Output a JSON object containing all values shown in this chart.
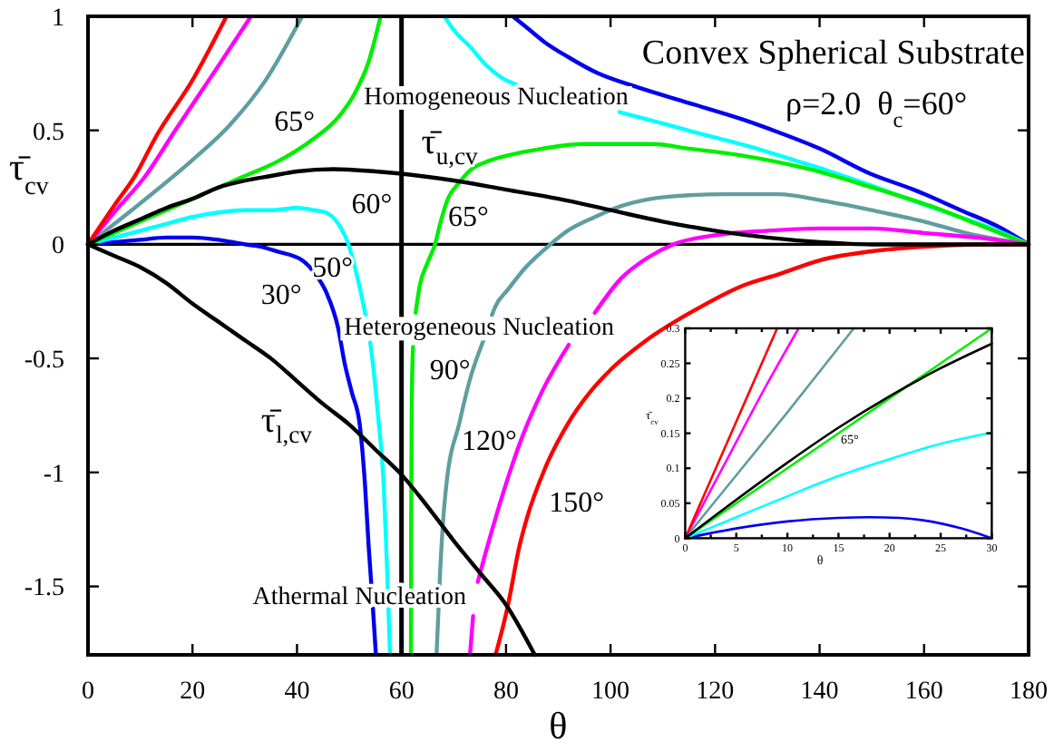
{
  "chart_data": [
    {
      "type": "line",
      "title": "Convex Spherical Substrate",
      "subtitle": "ρ=2.0  θ$_{c}$=60°",
      "xlabel": "θ",
      "ylabel": "τ̄$_{cv}$",
      "xlim": [
        0,
        180
      ],
      "ylim": [
        -1.8,
        1
      ],
      "xticks": [
        0,
        20,
        40,
        60,
        80,
        100,
        120,
        140,
        160,
        180
      ],
      "yticks": [
        -1.5,
        -1,
        -0.5,
        0,
        0.5,
        1
      ],
      "ref_lines": [
        {
          "axis": "x",
          "value": 60,
          "label": "60°",
          "color": "#000000"
        },
        {
          "axis": "y",
          "value": 0,
          "color": "#000000"
        }
      ],
      "annotations": [
        "Homogeneous Nucleation",
        "Heterogeneous Nucleation",
        "Athermal Nucleation"
      ],
      "series": [
        {
          "name": "30°",
          "color": "#0000ee",
          "x": [
            0,
            5,
            10,
            15,
            20,
            25,
            30,
            33,
            36,
            41,
            43.5,
            45.6,
            47.9,
            49.1,
            50.5,
            52,
            53,
            53.7,
            54.4,
            55.1,
            60,
            81.3,
            84,
            87.2,
            92,
            97.6,
            105,
            115,
            125,
            132.3,
            140,
            149.7,
            158,
            167,
            174,
            180
          ],
          "values": [
            0,
            0.01,
            0.02,
            0.03,
            0.03,
            0.02,
            0,
            -0.01,
            -0.03,
            -0.07,
            -0.13,
            -0.21,
            -0.37,
            -0.52,
            -0.65,
            -0.79,
            -1.05,
            -1.32,
            -1.55,
            -1.8,
            null,
            1,
            0.95,
            0.89,
            0.82,
            0.75,
            0.69,
            0.62,
            0.55,
            0.49,
            0.42,
            0.31,
            0.24,
            0.15,
            0.08,
            0
          ]
        },
        {
          "name": "50°",
          "color": "#00ffff",
          "x": [
            0,
            5,
            10,
            15,
            20,
            25,
            30,
            35,
            40,
            43.3,
            45.5,
            47.9,
            49.7,
            51.4,
            52.3,
            53.1,
            53.5,
            54,
            54.5,
            55.5,
            56.6,
            57.2,
            57.8,
            60,
            68.2,
            70,
            73.4,
            76,
            79.2,
            82,
            90,
            101.7,
            110,
            118,
            126.5,
            135,
            142,
            149.7,
            158,
            168.2,
            174,
            180
          ],
          "values": [
            0,
            0.03,
            0.06,
            0.09,
            0.12,
            0.14,
            0.15,
            0.15,
            0.16,
            0.15,
            0.14,
            0.09,
            0.01,
            -0.13,
            -0.22,
            -0.31,
            null,
            -0.43,
            -0.52,
            -0.75,
            -1.06,
            -1.4,
            -1.8,
            null,
            1,
            0.94,
            0.86,
            0.79,
            0.73,
            0.7,
            null,
            0.58,
            0.53,
            0.48,
            0.43,
            0.37,
            0.32,
            0.26,
            0.19,
            0.11,
            0.06,
            0
          ]
        },
        {
          "name": "65°",
          "color": "#00ee00",
          "x": [
            0,
            10,
            20,
            30,
            36,
            43,
            48,
            51,
            53.7,
            56,
            60,
            61.8,
            61.85,
            61.95,
            62.2,
            62.4,
            62.7,
            63.5,
            65,
            66.4,
            67.5,
            68.7,
            71,
            73.4,
            76,
            80.3,
            87,
            95,
            101,
            108,
            115,
            125,
            138,
            150,
            161,
            170,
            180
          ],
          "values": [
            0,
            0.1,
            0.2,
            0.3,
            0.36,
            0.46,
            0.56,
            0.66,
            0.8,
            1,
            null,
            -1.8,
            -1.2,
            -0.7,
            -0.45,
            null,
            -0.3,
            -0.18,
            -0.08,
            0,
            0.1,
            0.19,
            0.27,
            0.33,
            0.36,
            0.39,
            0.42,
            0.44,
            0.44,
            0.44,
            0.42,
            0.39,
            0.33,
            0.25,
            0.17,
            0.09,
            0
          ]
        },
        {
          "name": "90°",
          "color": "#5f9ea0",
          "x": [
            0,
            10,
            20,
            27,
            34,
            41,
            60,
            66.7,
            67.4,
            68,
            68.7,
            71,
            73,
            75.7,
            76.5,
            77.3,
            78,
            80.3,
            83.8,
            87,
            91.8,
            97,
            102.3,
            111.5,
            122,
            132,
            141,
            150,
            160,
            168,
            180
          ],
          "values": [
            0,
            0.18,
            0.37,
            0.52,
            0.72,
            1,
            null,
            -1.8,
            -1.43,
            -1.2,
            -1.03,
            -0.79,
            -0.6,
            -0.42,
            null,
            -0.31,
            -0.27,
            -0.2,
            -0.1,
            -0.03,
            0.06,
            0.12,
            0.17,
            0.21,
            0.22,
            0.22,
            0.19,
            0.15,
            0.1,
            0.05,
            0
          ]
        },
        {
          "name": "120°",
          "color": "#ff00ff",
          "x": [
            0,
            5,
            11,
            16.7,
            24,
            31.2,
            60,
            73.1,
            73.7,
            74.1,
            74.6,
            76,
            78,
            80,
            83,
            87,
            92,
            95,
            97,
            102,
            107,
            112,
            120,
            130,
            140,
            150,
            160,
            170,
            180
          ],
          "values": [
            0,
            0.14,
            0.3,
            0.5,
            0.75,
            1,
            null,
            -1.8,
            -1.63,
            null,
            -1.48,
            -1.36,
            -1.2,
            -1.05,
            -0.85,
            -0.64,
            -0.44,
            null,
            -0.3,
            -0.15,
            -0.06,
            0,
            0.04,
            0.06,
            0.07,
            0.07,
            0.05,
            0.03,
            0
          ]
        },
        {
          "name": "150°",
          "color": "#ff0000",
          "x": [
            0,
            5,
            9,
            13.2,
            20,
            26.5,
            60,
            78,
            80.3,
            82.6,
            84,
            87.5,
            92,
            96,
            100,
            106.9,
            116,
            125.4,
            132.3,
            140,
            150,
            160,
            170,
            180
          ],
          "values": [
            0,
            0.17,
            0.3,
            0.48,
            0.72,
            1,
            null,
            -1.8,
            -1.59,
            -1.32,
            -1.2,
            -0.98,
            -0.78,
            -0.65,
            -0.55,
            -0.42,
            -0.29,
            -0.18,
            -0.13,
            -0.07,
            -0.03,
            -0.01,
            0,
            0
          ]
        },
        {
          "name": "τ̄$_{u,cv}$",
          "color": "#000000",
          "x": [
            0,
            5,
            10,
            15,
            20,
            25,
            30,
            35,
            40,
            47,
            55,
            60,
            70,
            80,
            90,
            100,
            110,
            120,
            130,
            140,
            150,
            180
          ],
          "values": [
            0,
            0.06,
            0.11,
            0.16,
            0.2,
            0.25,
            0.28,
            0.3,
            0.32,
            0.33,
            0.32,
            0.31,
            0.28,
            0.24,
            0.2,
            0.15,
            0.1,
            0.06,
            0.03,
            0.01,
            0,
            0
          ]
        },
        {
          "name": "τ̄$_{l,cv}$",
          "color": "#000000",
          "x": [
            0,
            5,
            10,
            15,
            20,
            25,
            30,
            35,
            40,
            45,
            50,
            55,
            60,
            65,
            70,
            75,
            80,
            85.5
          ],
          "values": [
            0,
            -0.05,
            -0.1,
            -0.17,
            -0.26,
            -0.34,
            -0.42,
            -0.5,
            -0.6,
            -0.7,
            -0.79,
            -0.9,
            -1.01,
            -1.15,
            -1.3,
            -1.44,
            -1.58,
            -1.8
          ]
        }
      ]
    },
    {
      "type": "line",
      "xlabel": "θ",
      "ylabel": "τ̄$_{cv}$",
      "xlim": [
        0,
        30
      ],
      "ylim": [
        0,
        0.3
      ],
      "xticks": [
        0,
        {
          "value": 2.5,
          "label": null
        },
        5,
        {
          "value": 7.5,
          "label": null
        },
        10,
        {
          "value": 12.5,
          "label": null
        },
        15,
        {
          "value": 17.5,
          "label": null
        },
        20,
        {
          "value": 22.5,
          "label": null
        },
        25,
        {
          "value": 27.5,
          "label": null
        },
        30
      ],
      "yticks": [
        0,
        0.05,
        0.1,
        0.15,
        0.2,
        0.25,
        0.3
      ],
      "series": [
        {
          "color": "#0000ee",
          "x": [
            0,
            5,
            10,
            15,
            18,
            21,
            24,
            27,
            30
          ],
          "values": [
            0,
            0.014,
            0.024,
            0.029,
            0.03,
            0.029,
            0.024,
            0.014,
            0
          ]
        },
        {
          "color": "#00ffff",
          "x": [
            0,
            5,
            10,
            15,
            20,
            25,
            30
          ],
          "values": [
            0,
            0.03,
            0.06,
            0.089,
            0.113,
            0.135,
            0.151
          ]
        },
        {
          "name": "65°",
          "color": "#00ee00",
          "x": [
            0,
            10,
            20,
            30
          ],
          "values": [
            0,
            0.1,
            0.2,
            0.3
          ]
        },
        {
          "color": "#5f9ea0",
          "x": [
            0,
            5,
            10,
            16.5
          ],
          "values": [
            0,
            0.09,
            0.18,
            0.3
          ]
        },
        {
          "color": "#ff00ff",
          "x": [
            0,
            4,
            8,
            11.1
          ],
          "values": [
            0,
            0.11,
            0.22,
            0.3
          ]
        },
        {
          "color": "#ff0000",
          "x": [
            0,
            3,
            6,
            9
          ],
          "values": [
            0,
            0.1,
            0.2,
            0.3
          ]
        },
        {
          "color": "#000000",
          "x": [
            0,
            5,
            10,
            15,
            20,
            25,
            30
          ],
          "values": [
            0,
            0.055,
            0.108,
            0.158,
            0.203,
            0.243,
            0.278
          ]
        }
      ]
    }
  ]
}
